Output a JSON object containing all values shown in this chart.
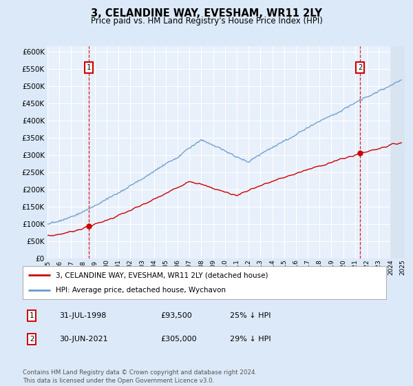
{
  "title": "3, CELANDINE WAY, EVESHAM, WR11 2LY",
  "subtitle": "Price paid vs. HM Land Registry's House Price Index (HPI)",
  "ytick_values": [
    0,
    50000,
    100000,
    150000,
    200000,
    250000,
    300000,
    350000,
    400000,
    450000,
    500000,
    550000,
    600000
  ],
  "ylim": [
    0,
    615000
  ],
  "bg_color": "#dce9f8",
  "plot_bg": "#e8f0fb",
  "grid_color": "#ffffff",
  "hpi_color": "#6699cc",
  "price_color": "#cc0000",
  "marker1_price": 93500,
  "marker2_price": 305000,
  "legend_line1": "3, CELANDINE WAY, EVESHAM, WR11 2LY (detached house)",
  "legend_line2": "HPI: Average price, detached house, Wychavon",
  "table_row1": [
    "1",
    "31-JUL-1998",
    "£93,500",
    "25% ↓ HPI"
  ],
  "table_row2": [
    "2",
    "30-JUN-2021",
    "£305,000",
    "29% ↓ HPI"
  ],
  "footnote": "Contains HM Land Registry data © Crown copyright and database right 2024.\nThis data is licensed under the Open Government Licence v3.0.",
  "xstart_year": 1995,
  "xend_year": 2025
}
